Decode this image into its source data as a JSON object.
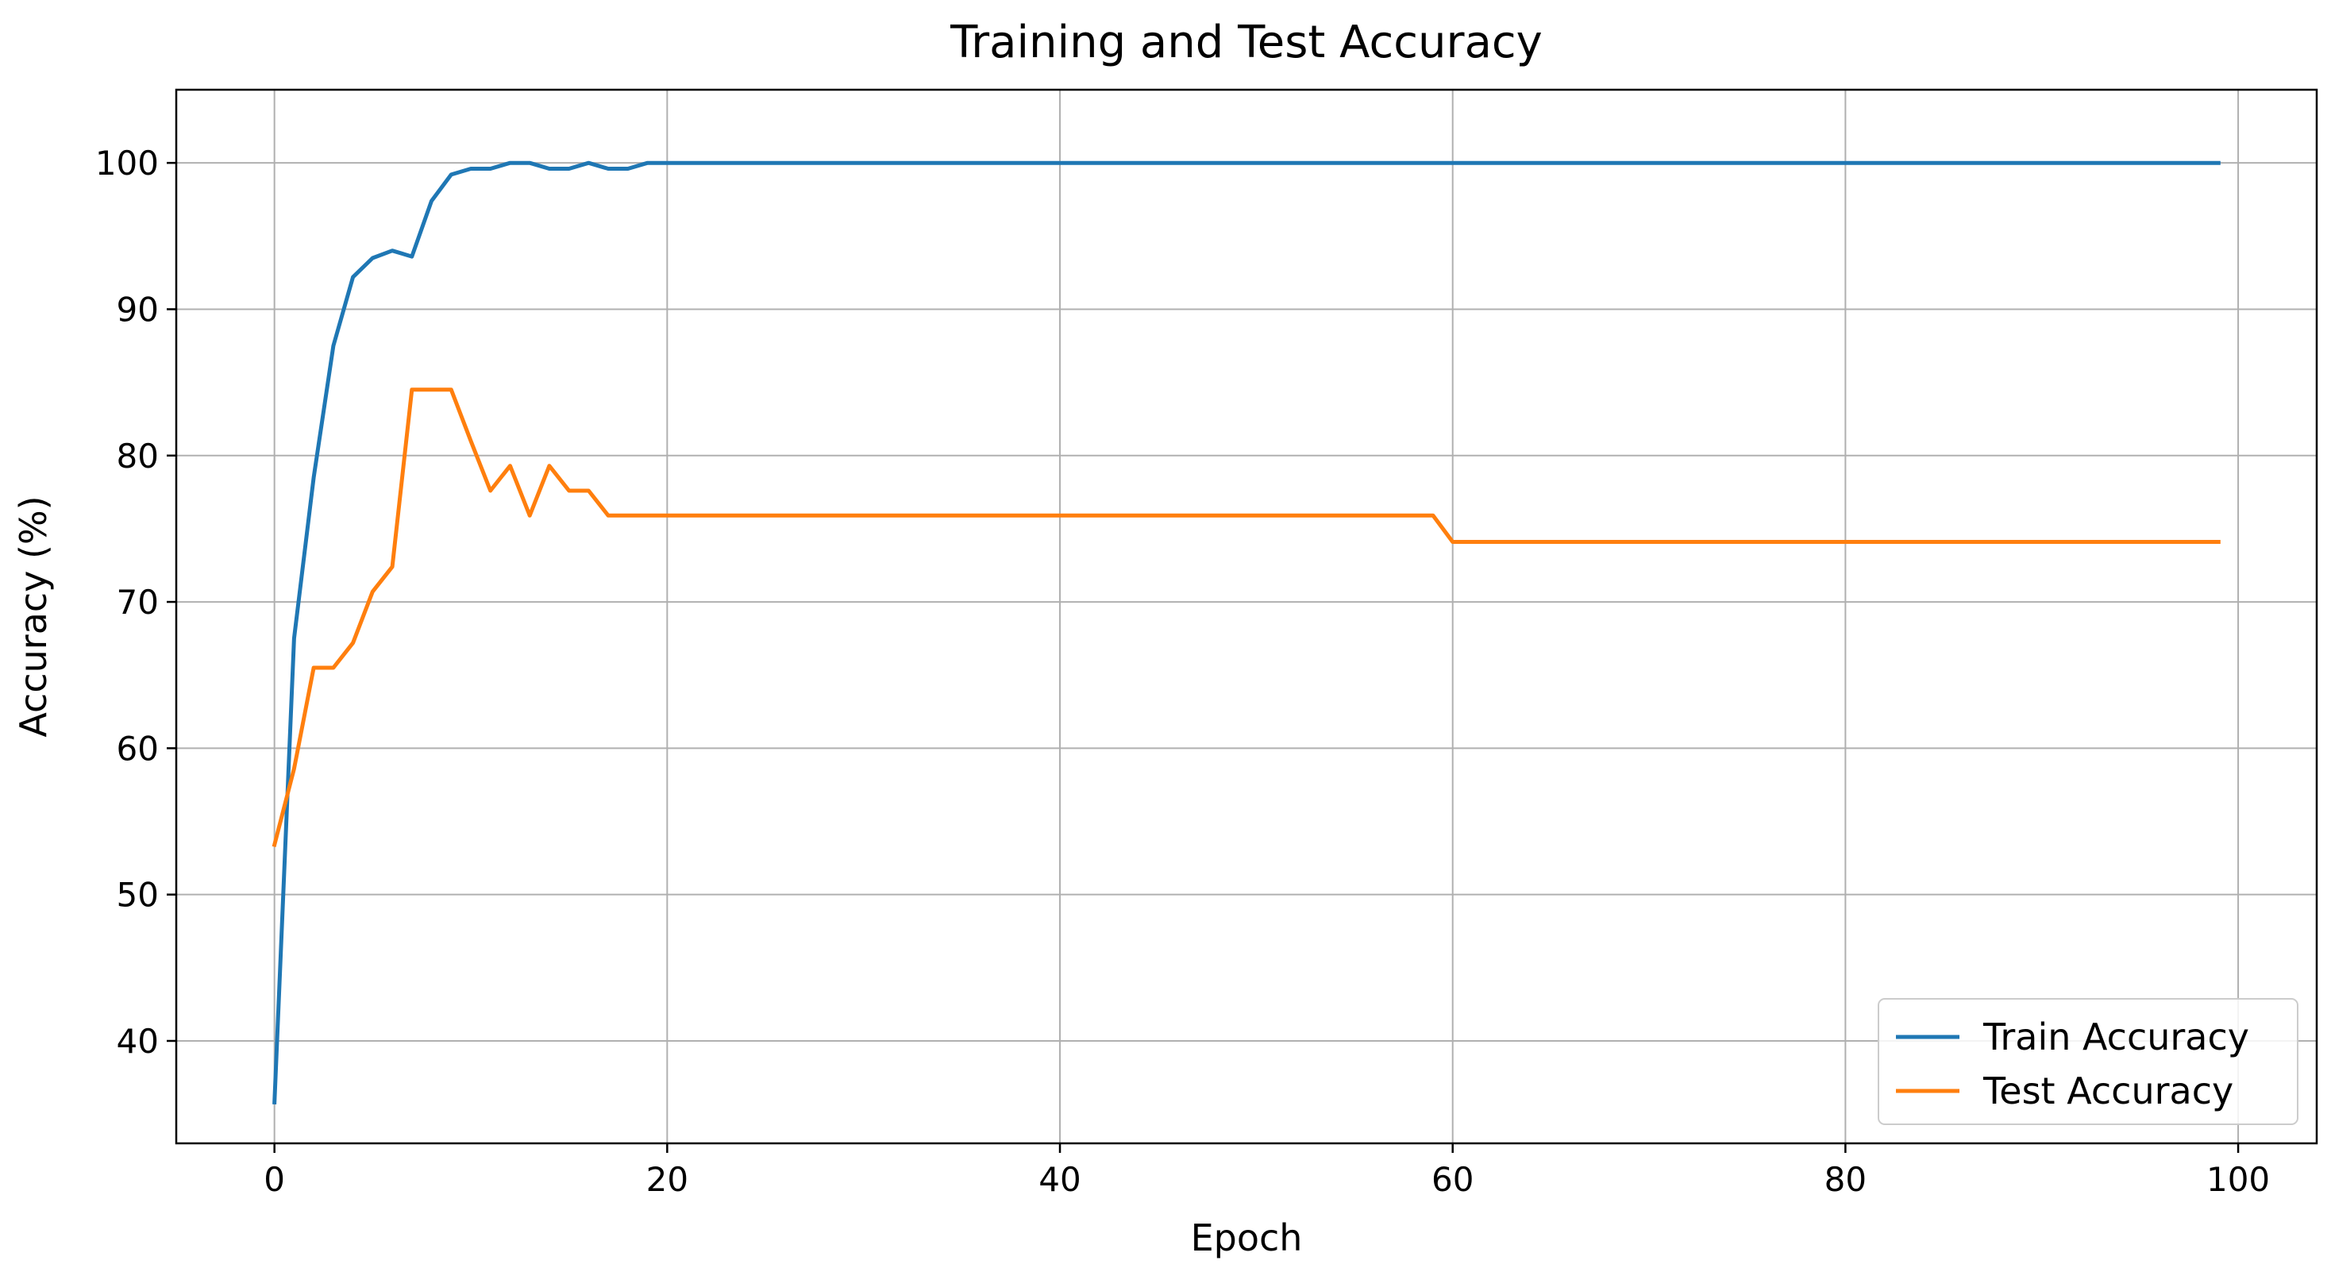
{
  "chart_data": {
    "type": "line",
    "title": "Training and Test Accuracy",
    "xlabel": "Epoch",
    "ylabel": "Accuracy (%)",
    "xlim": [
      -5,
      104
    ],
    "ylim": [
      33,
      105
    ],
    "xticks": [
      0,
      20,
      40,
      60,
      80,
      100
    ],
    "yticks": [
      40,
      50,
      60,
      70,
      80,
      90,
      100
    ],
    "grid": true,
    "legend_position": "lower-right",
    "series": [
      {
        "name": "Train Accuracy",
        "color": "#1f77b4",
        "x": [
          0,
          1,
          2,
          3,
          4,
          5,
          6,
          7,
          8,
          9,
          10,
          11,
          12,
          13,
          14,
          15,
          16,
          17,
          18,
          19,
          20,
          99
        ],
        "y": [
          35.8,
          67.5,
          78.5,
          87.5,
          92.2,
          93.5,
          94.0,
          93.6,
          97.4,
          99.2,
          99.6,
          99.6,
          100.0,
          100.0,
          99.6,
          99.6,
          100.0,
          99.6,
          99.6,
          100.0,
          100.0,
          100.0
        ]
      },
      {
        "name": "Test Accuracy",
        "color": "#ff7f0e",
        "x": [
          0,
          1,
          2,
          3,
          4,
          5,
          6,
          7,
          8,
          9,
          10,
          11,
          12,
          13,
          14,
          15,
          16,
          17,
          18,
          59,
          60,
          99
        ],
        "y": [
          53.4,
          58.6,
          65.5,
          65.5,
          67.2,
          70.7,
          72.4,
          84.5,
          84.5,
          84.5,
          81.0,
          77.6,
          79.3,
          75.9,
          79.3,
          77.6,
          77.6,
          75.9,
          75.9,
          75.9,
          74.1,
          74.1
        ]
      }
    ]
  }
}
